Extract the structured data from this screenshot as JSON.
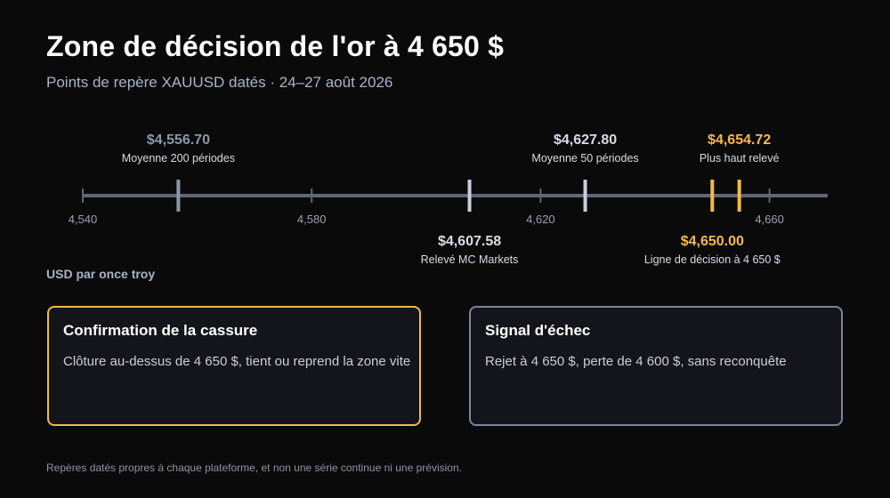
{
  "header": {
    "title": "Zone de décision de l'or à 4 650 $",
    "subtitle": "Points de repère XAUUSD datés · 24–27 août 2026"
  },
  "colors": {
    "background": "#0a0a0b",
    "axis": "#5f6675",
    "neutral_marker": "#8d96aa",
    "light_marker": "#c9cfdb",
    "accent_gold": "#f5b94a",
    "text_muted": "#a9b3c6"
  },
  "chart_data": {
    "type": "number-line",
    "xlim": [
      4540,
      4665
    ],
    "ticks": [
      {
        "value": 4540,
        "label": "4,540"
      },
      {
        "value": 4580,
        "label": "4,580"
      },
      {
        "value": 4620,
        "label": "4,620"
      },
      {
        "value": 4660,
        "label": "4,660"
      }
    ],
    "unit_label": "USD par once troy",
    "markers": [
      {
        "value": 4556.7,
        "price": "$4,556.70",
        "name": "Moyenne 200 périodes",
        "side": "above",
        "style": "neutral"
      },
      {
        "value": 4607.58,
        "price": "$4,607.58",
        "name": "Relevé MC Markets",
        "side": "below",
        "style": "light"
      },
      {
        "value": 4627.8,
        "price": "$4,627.80",
        "name": "Moyenne 50 périodes",
        "side": "above",
        "style": "light"
      },
      {
        "value": 4650.0,
        "price": "$4,650.00",
        "name": "Ligne de décision à 4 650 $",
        "side": "below",
        "style": "gold"
      },
      {
        "value": 4654.72,
        "price": "$4,654.72",
        "name": "Plus haut relevé",
        "side": "above",
        "style": "gold"
      }
    ]
  },
  "cards": {
    "break": {
      "title": "Confirmation de la cassure",
      "text": "Clôture au-dessus de 4 650 $, tient ou reprend la zone vite"
    },
    "fail": {
      "title": "Signal d'échec",
      "text": "Rejet à 4 650 $, perte de 4 600 $, sans reconquête"
    }
  },
  "footnote": "Repères datés propres à chaque plateforme, et non une série continue ni une prévision."
}
